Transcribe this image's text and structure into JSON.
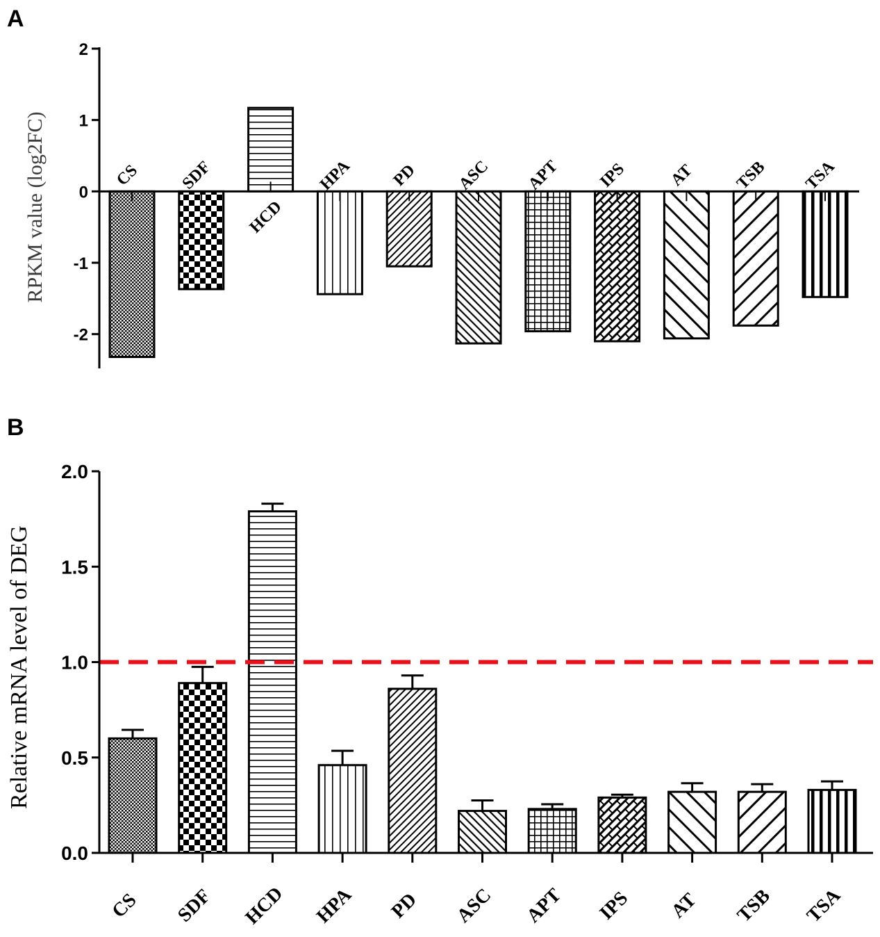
{
  "figure": {
    "panel_a_label": "A",
    "panel_b_label": "B"
  },
  "chart_data": [
    {
      "type": "bar",
      "panel": "A",
      "title": "",
      "xlabel": "",
      "ylabel": "RPKM value (log2FC)",
      "ylim": [
        -2.5,
        2
      ],
      "yticks": [
        -2,
        -1,
        0,
        1,
        2
      ],
      "ytick_labels": [
        "-2",
        "-1",
        "0",
        "1",
        "2"
      ],
      "grid": false,
      "categories": [
        "CS",
        "SDF",
        "HCD",
        "HPA",
        "PD",
        "ASC",
        "APT",
        "IPS",
        "AT",
        "TSB",
        "TSA"
      ],
      "values": [
        -2.32,
        -1.37,
        1.17,
        -1.44,
        -1.05,
        -2.13,
        -1.96,
        -2.1,
        -2.06,
        -1.88,
        -1.48
      ],
      "patterns": [
        "fine-dots",
        "checker",
        "hlines",
        "vlines",
        "diag-fine",
        "diag-back",
        "grid",
        "weave",
        "diag-back-wide",
        "diag-wide",
        "vlines-thick"
      ]
    },
    {
      "type": "bar",
      "panel": "B",
      "title": "",
      "xlabel": "",
      "ylabel": "Relative mRNA level of DEG",
      "ylim": [
        0,
        2.0
      ],
      "yticks": [
        0.0,
        0.5,
        1.0,
        1.5,
        2.0
      ],
      "ytick_labels": [
        "0.0",
        "0.5",
        "1.0",
        "1.5",
        "2.0"
      ],
      "grid": false,
      "categories": [
        "CS",
        "SDF",
        "HCD",
        "HPA",
        "PD",
        "ASC",
        "APT",
        "IPS",
        "AT",
        "TSB",
        "TSA"
      ],
      "values": [
        0.6,
        0.89,
        1.79,
        0.46,
        0.86,
        0.22,
        0.23,
        0.29,
        0.32,
        0.32,
        0.33
      ],
      "errors": [
        0.045,
        0.085,
        0.04,
        0.075,
        0.07,
        0.055,
        0.025,
        0.015,
        0.045,
        0.04,
        0.045
      ],
      "reference_line": {
        "y": 1.0,
        "color": "#e8111b",
        "style": "dashed"
      },
      "patterns": [
        "fine-dots",
        "checker",
        "hlines",
        "vlines",
        "diag-fine",
        "diag-back",
        "grid",
        "weave",
        "diag-back-wide",
        "diag-wide",
        "vlines-thick"
      ]
    }
  ]
}
